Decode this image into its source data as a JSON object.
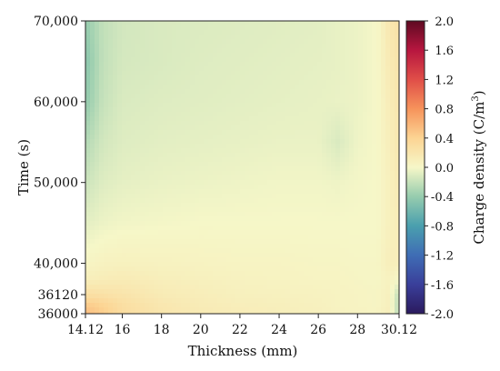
{
  "chart_data": {
    "type": "heatmap",
    "xlabel": "Thickness (mm)",
    "ylabel": "Time (s)",
    "colorbar_label": "Charge density (C/m",
    "colorbar_label_sup": "3",
    "colorbar_label_close": ")",
    "xlim": [
      14.12,
      30.12
    ],
    "ylim": [
      36000,
      70000
    ],
    "x_ticks": [
      {
        "value": 14.12,
        "label": "14.12"
      },
      {
        "value": 16,
        "label": "16"
      },
      {
        "value": 18,
        "label": "18"
      },
      {
        "value": 20,
        "label": "20"
      },
      {
        "value": 22,
        "label": "22"
      },
      {
        "value": 24,
        "label": "24"
      },
      {
        "value": 26,
        "label": "26"
      },
      {
        "value": 28,
        "label": "28"
      },
      {
        "value": 30.12,
        "label": "30.12"
      }
    ],
    "y_ticks": [
      {
        "value": 36000,
        "label": "36000"
      },
      {
        "value": 36120,
        "label": "36120"
      },
      {
        "value": 40000,
        "label": "40,000"
      },
      {
        "value": 50000,
        "label": "50,000"
      },
      {
        "value": 60000,
        "label": "60,000"
      },
      {
        "value": 70000,
        "label": "70,000"
      }
    ],
    "y_scale_note": "broken scale: 36000-36120 occupies bottom segment",
    "colorbar_range": [
      -2.0,
      2.0
    ],
    "colorbar_ticks": [
      {
        "value": 2.0,
        "label": "2.0"
      },
      {
        "value": 1.6,
        "label": "1.6"
      },
      {
        "value": 1.2,
        "label": "1.2"
      },
      {
        "value": 0.8,
        "label": "0.8"
      },
      {
        "value": 0.4,
        "label": "0.4"
      },
      {
        "value": 0.0,
        "label": "0.0"
      },
      {
        "value": -0.4,
        "label": "-0.4"
      },
      {
        "value": -0.8,
        "label": "-0.8"
      },
      {
        "value": -1.2,
        "label": "-1.2"
      },
      {
        "value": -1.6,
        "label": "-1.6"
      },
      {
        "value": -2.0,
        "label": "-2.0"
      }
    ],
    "colormap": [
      {
        "value": -2.0,
        "color": "#2b1a5e"
      },
      {
        "value": -1.6,
        "color": "#3a3f9a"
      },
      {
        "value": -1.2,
        "color": "#3f6db5"
      },
      {
        "value": -0.8,
        "color": "#4a9fae"
      },
      {
        "value": -0.4,
        "color": "#96ccae"
      },
      {
        "value": 0.0,
        "color": "#f6f7c8"
      },
      {
        "value": 0.4,
        "color": "#fcd493"
      },
      {
        "value": 0.8,
        "color": "#f6935b"
      },
      {
        "value": 1.2,
        "color": "#e04e48"
      },
      {
        "value": 1.6,
        "color": "#b7163f"
      },
      {
        "value": 2.0,
        "color": "#5e0a22"
      }
    ],
    "x": [
      14.12,
      15,
      16,
      18,
      20,
      22,
      24,
      26,
      27,
      28,
      29,
      29.6,
      30.12
    ],
    "y": [
      36000,
      36060,
      36120,
      38000,
      40000,
      45000,
      50000,
      55000,
      60000,
      65000,
      70000
    ],
    "z": [
      [
        0.55,
        0.45,
        0.3,
        0.2,
        0.15,
        0.12,
        0.1,
        0.08,
        0.06,
        0.05,
        0.04,
        0.1,
        -0.25
      ],
      [
        0.45,
        0.38,
        0.28,
        0.18,
        0.13,
        0.1,
        0.09,
        0.07,
        0.05,
        0.04,
        0.03,
        0.08,
        -0.25
      ],
      [
        0.28,
        0.25,
        0.22,
        0.14,
        0.11,
        0.08,
        0.07,
        0.06,
        0.05,
        0.04,
        0.03,
        0.08,
        -0.22
      ],
      [
        0.1,
        0.12,
        0.14,
        0.1,
        0.08,
        0.06,
        0.05,
        0.04,
        0.04,
        0.03,
        0.02,
        0.06,
        0.0
      ],
      [
        0.03,
        0.06,
        0.07,
        0.06,
        0.05,
        0.04,
        0.04,
        0.03,
        0.03,
        0.02,
        0.02,
        0.1,
        0.1
      ],
      [
        -0.08,
        -0.04,
        -0.02,
        -0.01,
        0.0,
        0.0,
        0.0,
        0.0,
        0.0,
        0.0,
        0.0,
        0.08,
        0.12
      ],
      [
        -0.18,
        -0.1,
        -0.07,
        -0.05,
        -0.04,
        -0.03,
        -0.02,
        -0.02,
        -0.03,
        -0.01,
        0.0,
        0.08,
        0.15
      ],
      [
        -0.28,
        -0.15,
        -0.1,
        -0.08,
        -0.07,
        -0.06,
        -0.05,
        -0.05,
        -0.12,
        -0.03,
        0.0,
        0.1,
        0.18
      ],
      [
        -0.42,
        -0.2,
        -0.12,
        -0.1,
        -0.09,
        -0.08,
        -0.07,
        -0.06,
        -0.05,
        -0.04,
        0.0,
        0.12,
        0.2
      ],
      [
        -0.46,
        -0.22,
        -0.14,
        -0.12,
        -0.1,
        -0.09,
        -0.08,
        -0.07,
        -0.06,
        -0.04,
        0.0,
        0.15,
        0.22
      ],
      [
        -0.4,
        -0.22,
        -0.15,
        -0.12,
        -0.11,
        -0.1,
        -0.09,
        -0.08,
        -0.06,
        -0.04,
        0.0,
        0.18,
        0.25
      ]
    ]
  }
}
